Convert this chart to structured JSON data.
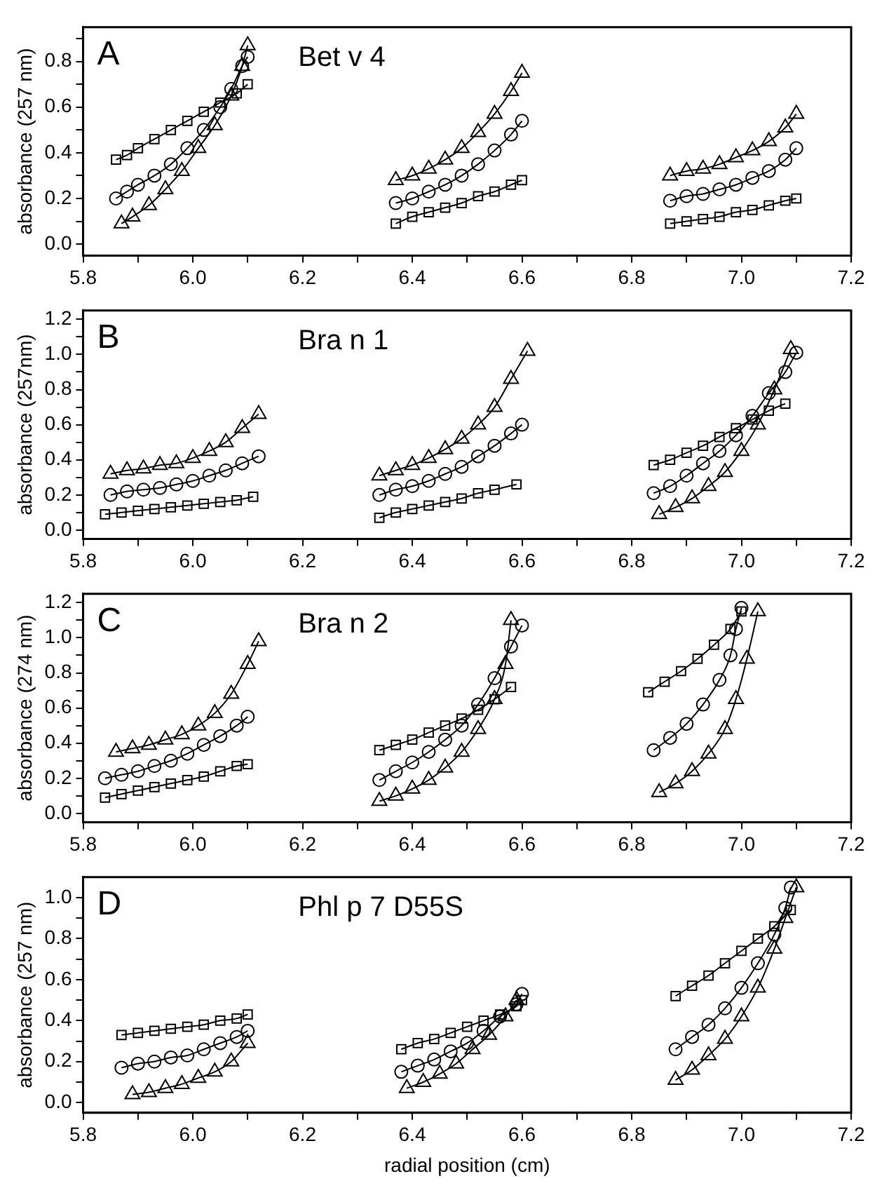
{
  "chart_data": [
    {
      "type": "line",
      "title": "A",
      "subtitle": "Bet v 4",
      "ylabel": "absorbance (257 nm)",
      "line_style": "solid",
      "grid": false,
      "xlim": [
        5.8,
        7.2
      ],
      "xticks": [
        5.8,
        {
          "value": 5.9,
          "label": null
        },
        {
          "value": 6.0,
          "label": "6.0"
        },
        {
          "value": 6.1,
          "label": null
        },
        6.2,
        {
          "value": 6.3,
          "label": null
        },
        6.4,
        {
          "value": 6.5,
          "label": null
        },
        6.6,
        {
          "value": 6.7,
          "label": null
        },
        6.8,
        {
          "value": 6.9,
          "label": null
        },
        {
          "value": 7.0,
          "label": "7.0"
        },
        {
          "value": 7.1,
          "label": null
        },
        7.2
      ],
      "ylim": [
        -0.05,
        0.95
      ],
      "yticks": [
        {
          "value": 0,
          "label": "0.0"
        },
        {
          "value": 0.1,
          "label": null
        },
        0.2,
        {
          "value": 0.3,
          "label": null
        },
        0.4,
        {
          "value": 0.5,
          "label": null
        },
        0.6,
        {
          "value": 0.7,
          "label": null
        },
        0.8,
        {
          "value": 0.9,
          "label": null
        }
      ],
      "series": [
        {
          "color": "#000000",
          "marker": "square",
          "x": [
            5.86,
            5.88,
            5.9,
            5.93,
            5.96,
            5.99,
            6.02,
            6.05,
            6.08,
            6.1
          ],
          "values": [
            0.37,
            0.39,
            0.42,
            0.46,
            0.5,
            0.54,
            0.58,
            0.62,
            0.66,
            0.7
          ]
        },
        {
          "color": "#000000",
          "marker": "circle",
          "x": [
            5.86,
            5.88,
            5.9,
            5.93,
            5.96,
            5.99,
            6.02,
            6.05,
            6.07,
            6.09,
            6.1
          ],
          "values": [
            0.2,
            0.23,
            0.26,
            0.3,
            0.35,
            0.42,
            0.5,
            0.6,
            0.68,
            0.78,
            0.82
          ]
        },
        {
          "color": "#000000",
          "marker": "triangle",
          "x": [
            5.87,
            5.89,
            5.92,
            5.95,
            5.98,
            6.01,
            6.04,
            6.07,
            6.09,
            6.1
          ],
          "values": [
            0.09,
            0.12,
            0.17,
            0.24,
            0.32,
            0.42,
            0.52,
            0.65,
            0.78,
            0.87
          ]
        },
        {
          "color": "#000000",
          "marker": "triangle",
          "x": [
            6.37,
            6.4,
            6.43,
            6.46,
            6.49,
            6.52,
            6.55,
            6.58,
            6.6
          ],
          "values": [
            0.28,
            0.3,
            0.33,
            0.37,
            0.42,
            0.49,
            0.57,
            0.67,
            0.75
          ]
        },
        {
          "color": "#000000",
          "marker": "circle",
          "x": [
            6.37,
            6.4,
            6.43,
            6.46,
            6.49,
            6.52,
            6.55,
            6.58,
            6.6
          ],
          "values": [
            0.18,
            0.2,
            0.23,
            0.26,
            0.3,
            0.35,
            0.41,
            0.48,
            0.54
          ]
        },
        {
          "color": "#000000",
          "marker": "square",
          "x": [
            6.37,
            6.4,
            6.43,
            6.46,
            6.49,
            6.52,
            6.55,
            6.58,
            6.6
          ],
          "values": [
            0.09,
            0.12,
            0.14,
            0.16,
            0.18,
            0.21,
            0.23,
            0.26,
            0.28
          ]
        },
        {
          "color": "#000000",
          "marker": "triangle",
          "x": [
            6.87,
            6.9,
            6.93,
            6.96,
            6.99,
            7.02,
            7.05,
            7.08,
            7.1
          ],
          "values": [
            0.3,
            0.32,
            0.33,
            0.35,
            0.38,
            0.41,
            0.45,
            0.51,
            0.57
          ]
        },
        {
          "color": "#000000",
          "marker": "circle",
          "x": [
            6.87,
            6.9,
            6.93,
            6.96,
            6.99,
            7.02,
            7.05,
            7.08,
            7.1
          ],
          "values": [
            0.19,
            0.21,
            0.22,
            0.24,
            0.26,
            0.29,
            0.32,
            0.37,
            0.42
          ]
        },
        {
          "color": "#000000",
          "marker": "square",
          "x": [
            6.87,
            6.9,
            6.93,
            6.96,
            6.99,
            7.02,
            7.05,
            7.08,
            7.1
          ],
          "values": [
            0.09,
            0.1,
            0.11,
            0.12,
            0.14,
            0.15,
            0.17,
            0.19,
            0.2
          ]
        }
      ]
    },
    {
      "type": "line",
      "title": "B",
      "subtitle": "Bra n 1",
      "ylabel": "absorbance (257nm)",
      "line_style": "solid",
      "grid": false,
      "xlim": [
        5.8,
        7.2
      ],
      "xticks": [
        5.8,
        {
          "value": 5.9,
          "label": null
        },
        {
          "value": 6.0,
          "label": "6.0"
        },
        {
          "value": 6.1,
          "label": null
        },
        6.2,
        {
          "value": 6.3,
          "label": null
        },
        6.4,
        {
          "value": 6.5,
          "label": null
        },
        6.6,
        {
          "value": 6.7,
          "label": null
        },
        6.8,
        {
          "value": 6.9,
          "label": null
        },
        {
          "value": 7.0,
          "label": "7.0"
        },
        {
          "value": 7.1,
          "label": null
        },
        7.2
      ],
      "ylim": [
        -0.05,
        1.25
      ],
      "yticks": [
        {
          "value": 0,
          "label": "0.0"
        },
        {
          "value": 0.1,
          "label": null
        },
        0.2,
        {
          "value": 0.3,
          "label": null
        },
        0.4,
        {
          "value": 0.5,
          "label": null
        },
        0.6,
        {
          "value": 0.7,
          "label": null
        },
        0.8,
        {
          "value": 0.9,
          "label": null
        },
        {
          "value": 1.0,
          "label": "1.0"
        },
        {
          "value": 1.1,
          "label": null
        },
        1.2
      ],
      "series": [
        {
          "color": "#000000",
          "marker": "square",
          "x": [
            5.84,
            5.87,
            5.9,
            5.93,
            5.96,
            5.99,
            6.02,
            6.05,
            6.08,
            6.11
          ],
          "values": [
            0.09,
            0.1,
            0.11,
            0.12,
            0.13,
            0.14,
            0.15,
            0.16,
            0.17,
            0.19
          ]
        },
        {
          "color": "#000000",
          "marker": "circle",
          "x": [
            5.85,
            5.88,
            5.91,
            5.94,
            5.97,
            6.0,
            6.03,
            6.06,
            6.09,
            6.12
          ],
          "values": [
            0.2,
            0.22,
            0.23,
            0.24,
            0.26,
            0.28,
            0.31,
            0.34,
            0.38,
            0.42
          ]
        },
        {
          "color": "#000000",
          "marker": "triangle",
          "x": [
            5.85,
            5.88,
            5.91,
            5.94,
            5.97,
            6.0,
            6.03,
            6.06,
            6.09,
            6.12
          ],
          "values": [
            0.32,
            0.34,
            0.35,
            0.37,
            0.38,
            0.41,
            0.45,
            0.5,
            0.58,
            0.66
          ]
        },
        {
          "color": "#000000",
          "marker": "square",
          "x": [
            6.34,
            6.37,
            6.4,
            6.43,
            6.46,
            6.49,
            6.52,
            6.55,
            6.59
          ],
          "values": [
            0.07,
            0.1,
            0.12,
            0.14,
            0.16,
            0.18,
            0.21,
            0.23,
            0.26
          ]
        },
        {
          "color": "#000000",
          "marker": "circle",
          "x": [
            6.34,
            6.37,
            6.4,
            6.43,
            6.46,
            6.49,
            6.52,
            6.55,
            6.58,
            6.6
          ],
          "values": [
            0.2,
            0.23,
            0.25,
            0.28,
            0.32,
            0.36,
            0.42,
            0.48,
            0.55,
            0.6
          ]
        },
        {
          "color": "#000000",
          "marker": "triangle",
          "x": [
            6.34,
            6.37,
            6.4,
            6.43,
            6.46,
            6.49,
            6.52,
            6.55,
            6.58,
            6.61
          ],
          "values": [
            0.31,
            0.34,
            0.37,
            0.41,
            0.46,
            0.52,
            0.6,
            0.7,
            0.86,
            1.02
          ]
        },
        {
          "color": "#000000",
          "marker": "square",
          "x": [
            6.84,
            6.87,
            6.9,
            6.93,
            6.96,
            6.99,
            7.02,
            7.05,
            7.08
          ],
          "values": [
            0.37,
            0.4,
            0.44,
            0.48,
            0.53,
            0.58,
            0.63,
            0.68,
            0.72
          ]
        },
        {
          "color": "#000000",
          "marker": "circle",
          "x": [
            6.84,
            6.87,
            6.9,
            6.93,
            6.96,
            6.99,
            7.02,
            7.05,
            7.08,
            7.1
          ],
          "values": [
            0.21,
            0.25,
            0.31,
            0.38,
            0.45,
            0.54,
            0.65,
            0.78,
            0.9,
            1.01
          ]
        },
        {
          "color": "#000000",
          "marker": "triangle",
          "x": [
            6.85,
            6.88,
            6.91,
            6.94,
            6.97,
            7.0,
            7.03,
            7.06,
            7.09
          ],
          "values": [
            0.09,
            0.13,
            0.18,
            0.25,
            0.33,
            0.45,
            0.6,
            0.8,
            1.03
          ]
        }
      ]
    },
    {
      "type": "line",
      "title": "C",
      "subtitle": "Bra n 2",
      "ylabel": "absorbance (274 nm)",
      "line_style": "solid",
      "grid": false,
      "xlim": [
        5.8,
        7.2
      ],
      "xticks": [
        5.8,
        {
          "value": 5.9,
          "label": null
        },
        {
          "value": 6.0,
          "label": "6.0"
        },
        {
          "value": 6.1,
          "label": null
        },
        6.2,
        {
          "value": 6.3,
          "label": null
        },
        6.4,
        {
          "value": 6.5,
          "label": null
        },
        6.6,
        {
          "value": 6.7,
          "label": null
        },
        6.8,
        {
          "value": 6.9,
          "label": null
        },
        {
          "value": 7.0,
          "label": "7.0"
        },
        {
          "value": 7.1,
          "label": null
        },
        7.2
      ],
      "ylim": [
        -0.05,
        1.25
      ],
      "yticks": [
        {
          "value": 0,
          "label": "0.0"
        },
        {
          "value": 0.1,
          "label": null
        },
        0.2,
        {
          "value": 0.3,
          "label": null
        },
        0.4,
        {
          "value": 0.5,
          "label": null
        },
        0.6,
        {
          "value": 0.7,
          "label": null
        },
        0.8,
        {
          "value": 0.9,
          "label": null
        },
        {
          "value": 1.0,
          "label": "1.0"
        },
        {
          "value": 1.1,
          "label": null
        },
        1.2
      ],
      "series": [
        {
          "color": "#000000",
          "marker": "square",
          "x": [
            5.84,
            5.87,
            5.9,
            5.93,
            5.96,
            5.99,
            6.02,
            6.05,
            6.08,
            6.1
          ],
          "values": [
            0.09,
            0.11,
            0.13,
            0.15,
            0.17,
            0.19,
            0.21,
            0.24,
            0.27,
            0.28
          ]
        },
        {
          "color": "#000000",
          "marker": "circle",
          "x": [
            5.84,
            5.87,
            5.9,
            5.93,
            5.96,
            5.99,
            6.02,
            6.05,
            6.08,
            6.1
          ],
          "values": [
            0.2,
            0.22,
            0.24,
            0.27,
            0.3,
            0.34,
            0.39,
            0.44,
            0.5,
            0.55
          ]
        },
        {
          "color": "#000000",
          "marker": "triangle",
          "x": [
            5.86,
            5.89,
            5.92,
            5.95,
            5.98,
            6.01,
            6.04,
            6.07,
            6.1,
            6.12
          ],
          "values": [
            0.35,
            0.37,
            0.39,
            0.42,
            0.45,
            0.5,
            0.57,
            0.68,
            0.85,
            0.98
          ]
        },
        {
          "color": "#000000",
          "marker": "square",
          "x": [
            6.34,
            6.37,
            6.4,
            6.43,
            6.46,
            6.49,
            6.52,
            6.55,
            6.58
          ],
          "values": [
            0.36,
            0.39,
            0.42,
            0.46,
            0.5,
            0.54,
            0.59,
            0.65,
            0.72
          ]
        },
        {
          "color": "#000000",
          "marker": "circle",
          "x": [
            6.34,
            6.37,
            6.4,
            6.43,
            6.46,
            6.49,
            6.52,
            6.55,
            6.58,
            6.6
          ],
          "values": [
            0.19,
            0.24,
            0.29,
            0.35,
            0.42,
            0.5,
            0.62,
            0.77,
            0.95,
            1.07
          ]
        },
        {
          "color": "#000000",
          "marker": "triangle",
          "x": [
            6.34,
            6.37,
            6.4,
            6.43,
            6.46,
            6.49,
            6.52,
            6.55,
            6.57,
            6.58
          ],
          "values": [
            0.07,
            0.1,
            0.14,
            0.19,
            0.26,
            0.35,
            0.48,
            0.65,
            0.85,
            1.1
          ]
        },
        {
          "color": "#000000",
          "marker": "square",
          "x": [
            6.83,
            6.86,
            6.89,
            6.92,
            6.95,
            6.98,
            7.0
          ],
          "values": [
            0.69,
            0.75,
            0.81,
            0.88,
            0.96,
            1.05,
            1.15
          ]
        },
        {
          "color": "#000000",
          "marker": "circle",
          "x": [
            6.84,
            6.87,
            6.9,
            6.93,
            6.96,
            6.98,
            6.99,
            7.0
          ],
          "values": [
            0.36,
            0.43,
            0.51,
            0.62,
            0.76,
            0.9,
            1.05,
            1.17
          ]
        },
        {
          "color": "#000000",
          "marker": "triangle",
          "x": [
            6.85,
            6.88,
            6.91,
            6.94,
            6.97,
            6.99,
            7.01,
            7.03
          ],
          "values": [
            0.12,
            0.17,
            0.24,
            0.34,
            0.48,
            0.65,
            0.88,
            1.15
          ]
        }
      ]
    },
    {
      "type": "line",
      "title": "D",
      "subtitle": "Phl p 7 D55S",
      "xlabel": "radial position (cm)",
      "ylabel": "absorbance (257 nm)",
      "line_style": "solid",
      "grid": false,
      "xlim": [
        5.8,
        7.2
      ],
      "xticks": [
        5.8,
        {
          "value": 5.9,
          "label": null
        },
        {
          "value": 6.0,
          "label": "6.0"
        },
        {
          "value": 6.1,
          "label": null
        },
        6.2,
        {
          "value": 6.3,
          "label": null
        },
        6.4,
        {
          "value": 6.5,
          "label": null
        },
        6.6,
        {
          "value": 6.7,
          "label": null
        },
        6.8,
        {
          "value": 6.9,
          "label": null
        },
        {
          "value": 7.0,
          "label": "7.0"
        },
        {
          "value": 7.1,
          "label": null
        },
        7.2
      ],
      "ylim": [
        -0.05,
        1.1
      ],
      "yticks": [
        {
          "value": 0,
          "label": "0.0"
        },
        {
          "value": 0.1,
          "label": null
        },
        0.2,
        {
          "value": 0.3,
          "label": null
        },
        0.4,
        {
          "value": 0.5,
          "label": null
        },
        0.6,
        {
          "value": 0.7,
          "label": null
        },
        0.8,
        {
          "value": 0.9,
          "label": null
        },
        {
          "value": 1.0,
          "label": "1.0"
        }
      ],
      "series": [
        {
          "color": "#000000",
          "marker": "square",
          "x": [
            5.87,
            5.9,
            5.93,
            5.96,
            5.99,
            6.02,
            6.05,
            6.08,
            6.1
          ],
          "values": [
            0.33,
            0.34,
            0.35,
            0.36,
            0.37,
            0.38,
            0.4,
            0.41,
            0.43
          ]
        },
        {
          "color": "#000000",
          "marker": "circle",
          "x": [
            5.87,
            5.9,
            5.93,
            5.96,
            5.99,
            6.02,
            6.05,
            6.08,
            6.1
          ],
          "values": [
            0.17,
            0.19,
            0.2,
            0.22,
            0.23,
            0.26,
            0.29,
            0.32,
            0.35
          ]
        },
        {
          "color": "#000000",
          "marker": "triangle",
          "x": [
            5.89,
            5.92,
            5.95,
            5.98,
            6.01,
            6.04,
            6.07,
            6.1
          ],
          "values": [
            0.04,
            0.05,
            0.07,
            0.09,
            0.12,
            0.15,
            0.2,
            0.29
          ]
        },
        {
          "color": "#000000",
          "marker": "square",
          "x": [
            6.38,
            6.41,
            6.44,
            6.47,
            6.5,
            6.53,
            6.56,
            6.59,
            6.6
          ],
          "values": [
            0.26,
            0.29,
            0.31,
            0.34,
            0.37,
            0.4,
            0.43,
            0.47,
            0.5
          ]
        },
        {
          "color": "#000000",
          "marker": "circle",
          "x": [
            6.38,
            6.41,
            6.44,
            6.47,
            6.5,
            6.53,
            6.56,
            6.59,
            6.6
          ],
          "values": [
            0.15,
            0.18,
            0.21,
            0.25,
            0.29,
            0.35,
            0.42,
            0.48,
            0.53
          ]
        },
        {
          "color": "#000000",
          "marker": "triangle",
          "x": [
            6.39,
            6.42,
            6.45,
            6.48,
            6.51,
            6.54,
            6.57,
            6.59
          ],
          "values": [
            0.07,
            0.1,
            0.14,
            0.19,
            0.26,
            0.33,
            0.42,
            0.5
          ]
        },
        {
          "color": "#000000",
          "marker": "square",
          "x": [
            6.88,
            6.91,
            6.94,
            6.97,
            7.0,
            7.03,
            7.06,
            7.09
          ],
          "values": [
            0.52,
            0.57,
            0.62,
            0.68,
            0.74,
            0.8,
            0.86,
            0.94
          ]
        },
        {
          "color": "#000000",
          "marker": "circle",
          "x": [
            6.88,
            6.91,
            6.94,
            6.97,
            7.0,
            7.03,
            7.06,
            7.08,
            7.09
          ],
          "values": [
            0.26,
            0.32,
            0.38,
            0.46,
            0.56,
            0.68,
            0.82,
            0.95,
            1.05
          ]
        },
        {
          "color": "#000000",
          "marker": "triangle",
          "x": [
            6.88,
            6.91,
            6.94,
            6.97,
            7.0,
            7.03,
            7.06,
            7.08,
            7.1
          ],
          "values": [
            0.11,
            0.16,
            0.23,
            0.31,
            0.42,
            0.56,
            0.75,
            0.9,
            1.05
          ]
        }
      ]
    }
  ]
}
